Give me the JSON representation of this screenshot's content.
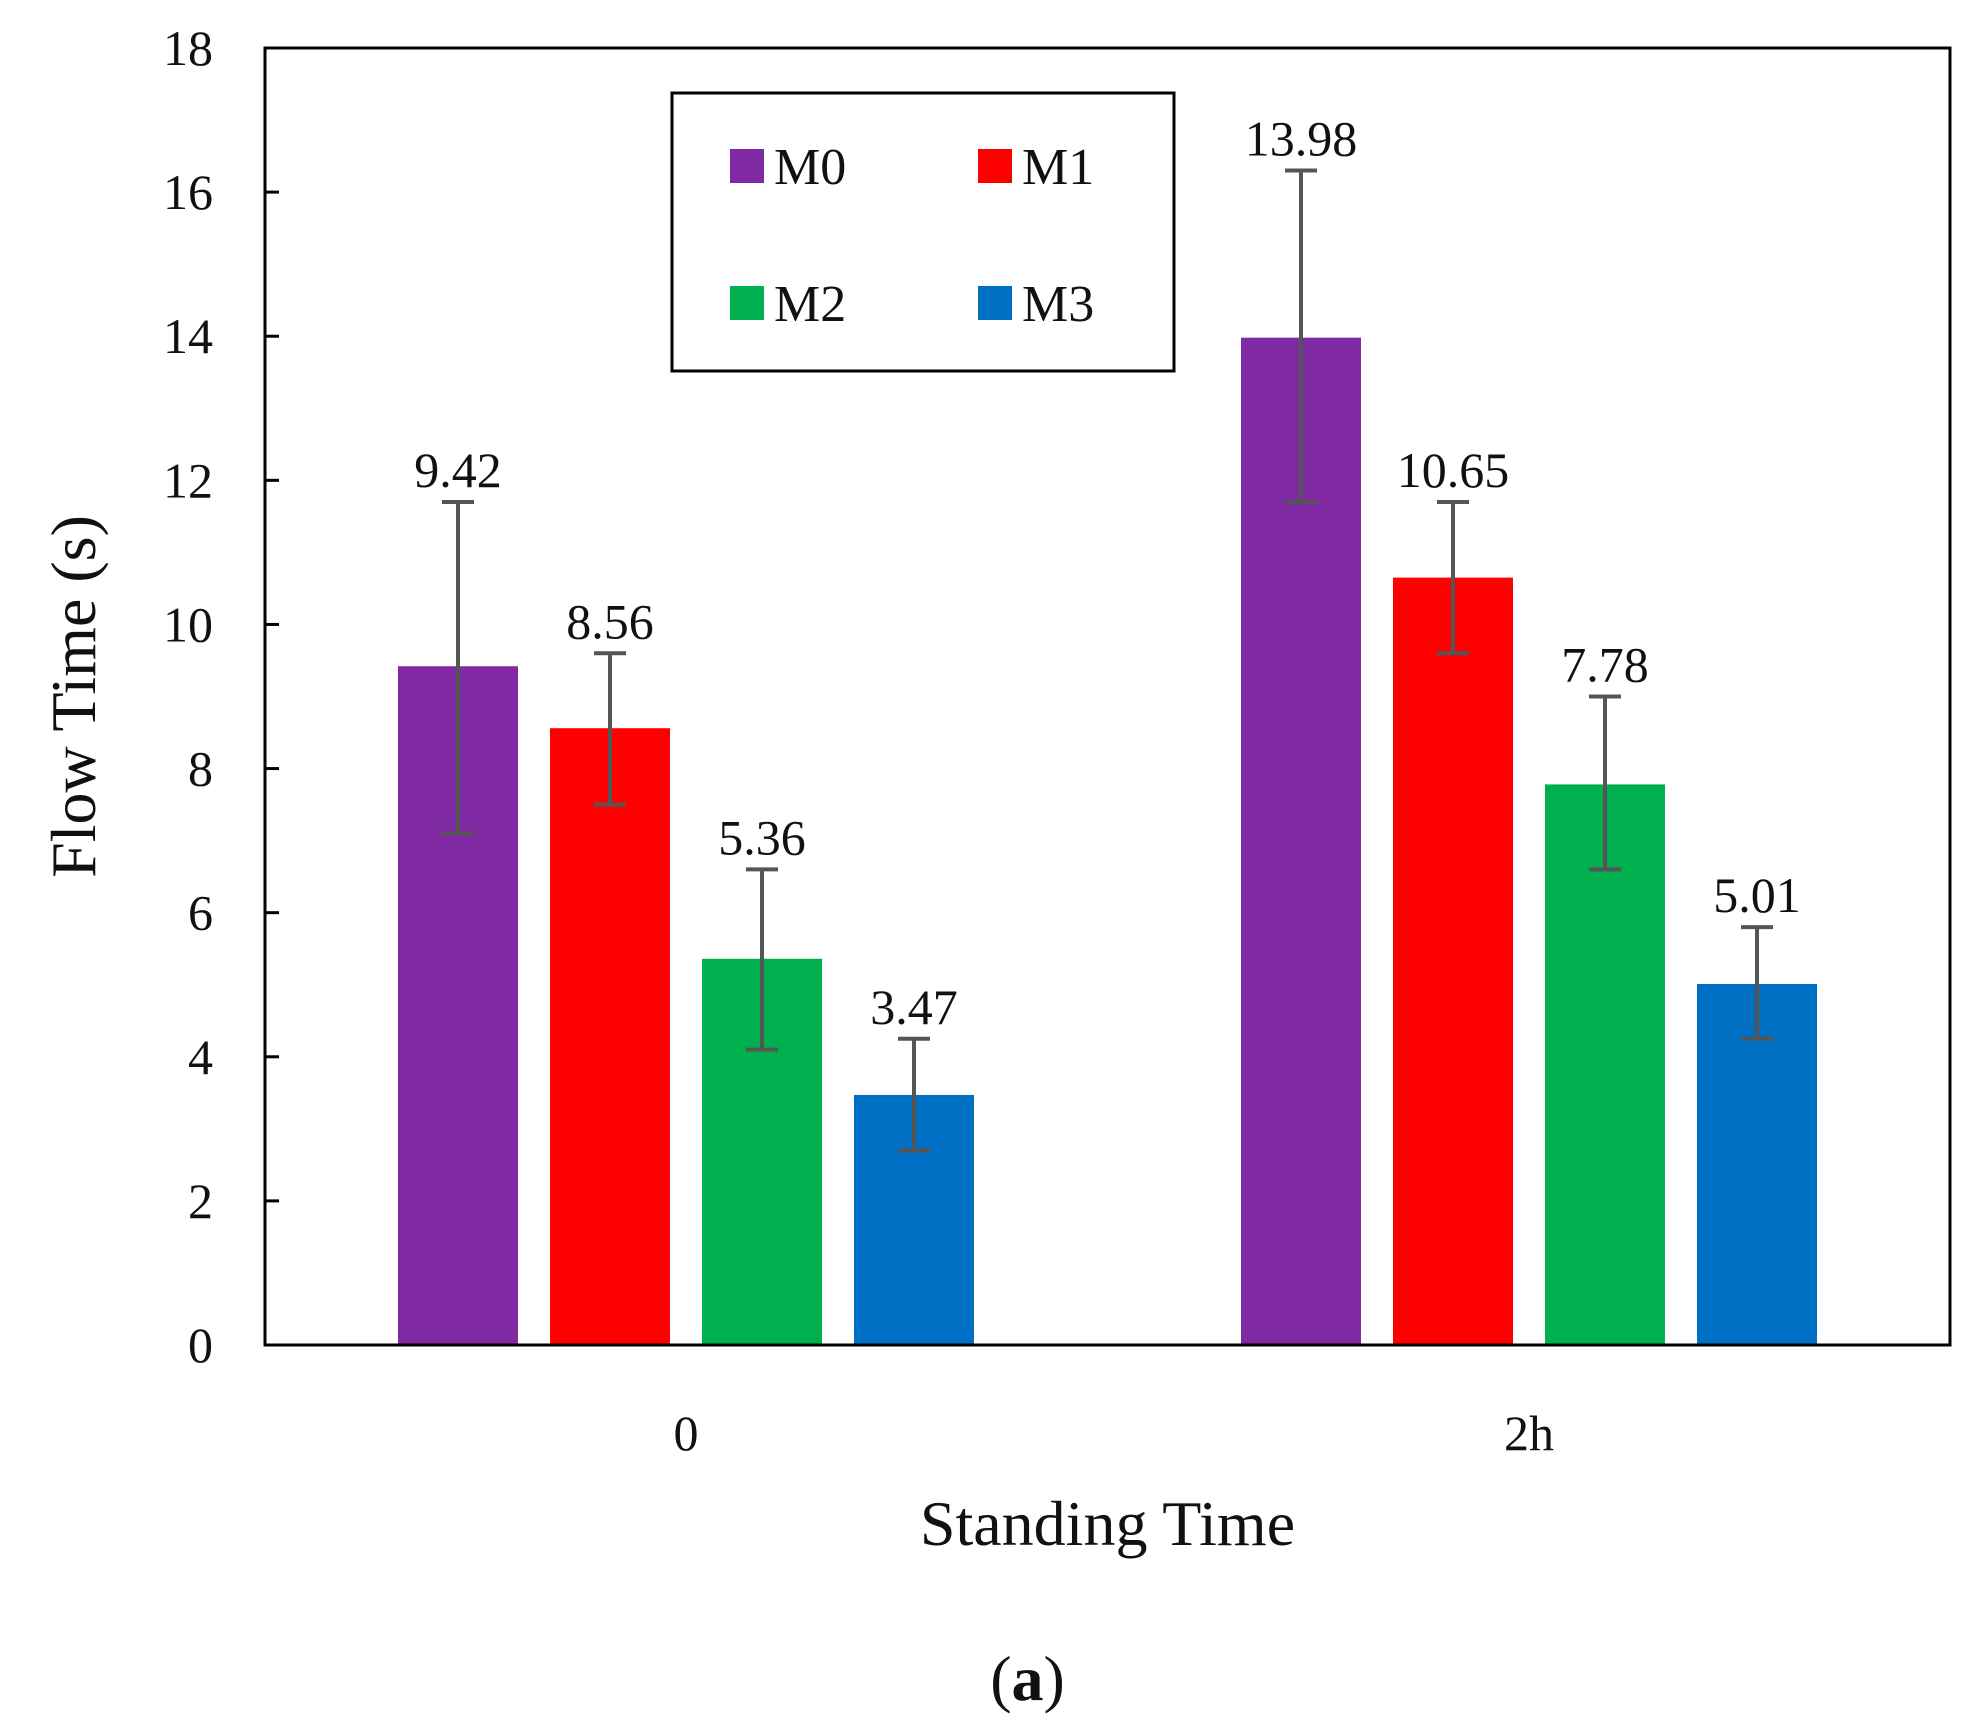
{
  "chart_data": {
    "type": "bar",
    "categories": [
      "0",
      "2h"
    ],
    "series": [
      {
        "name": "M0",
        "color": "#7F2AA3",
        "values": [
          9.42,
          13.98
        ],
        "errors": [
          [
            7.1,
            11.7
          ],
          [
            11.7,
            16.3
          ]
        ],
        "labels": [
          "9.42",
          "13.98"
        ]
      },
      {
        "name": "M1",
        "color": "#FF0000",
        "values": [
          8.56,
          10.65
        ],
        "errors": [
          [
            7.5,
            9.6
          ],
          [
            9.6,
            11.7
          ]
        ],
        "labels": [
          "8.56",
          "10.65"
        ]
      },
      {
        "name": "M2",
        "color": "#00B04F",
        "values": [
          5.36,
          7.78
        ],
        "errors": [
          [
            4.1,
            6.6
          ],
          [
            6.6,
            9.0
          ]
        ],
        "labels": [
          "5.36",
          "7.78"
        ]
      },
      {
        "name": "M3",
        "color": "#0070C4",
        "values": [
          3.47,
          5.01
        ],
        "errors": [
          [
            2.7,
            4.25
          ],
          [
            4.25,
            5.8
          ]
        ],
        "labels": [
          "3.47",
          "5.01"
        ]
      }
    ],
    "title": "",
    "xlabel": "Standing Time",
    "ylabel": "Flow Time (s)",
    "ylim": [
      0,
      18
    ],
    "yticks": [
      "0",
      "2",
      "4",
      "6",
      "8",
      "10",
      "12",
      "14",
      "16",
      "18"
    ],
    "grid": false,
    "legend_position": "top-center",
    "error_bar_color": "#555555"
  },
  "caption": {
    "open": "(",
    "letter": "a",
    "close": ")"
  }
}
